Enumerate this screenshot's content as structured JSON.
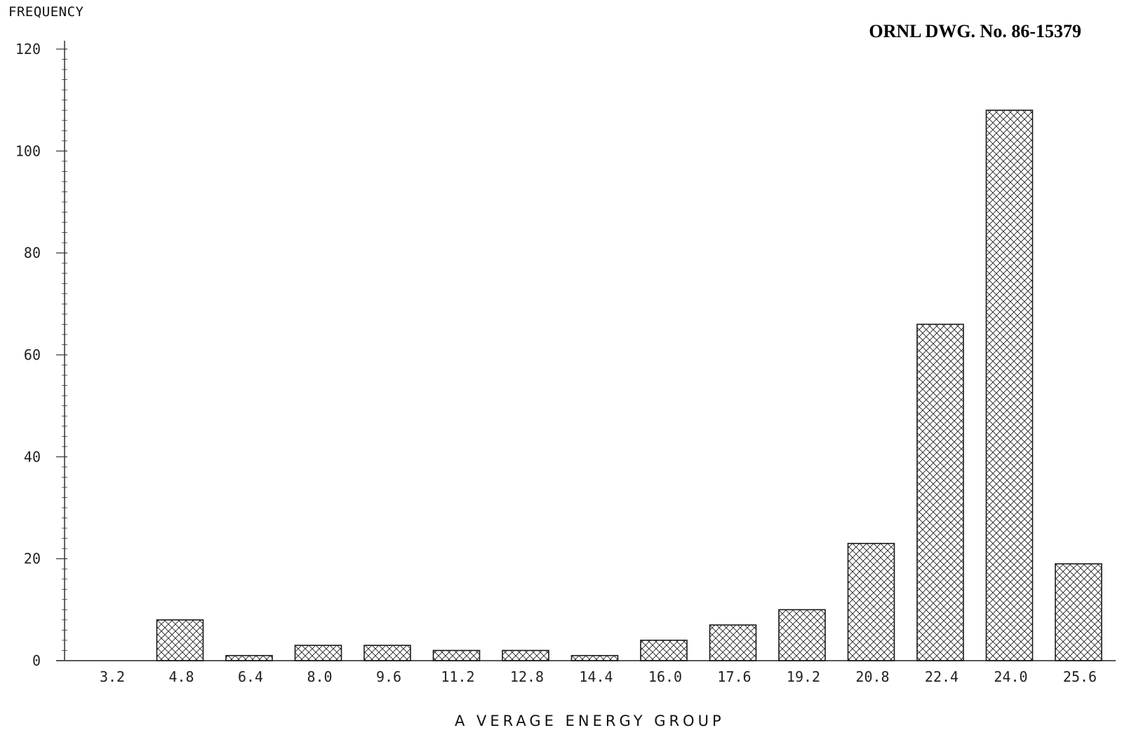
{
  "drawing_number": "ORNL DWG. No. 86-15379",
  "chart_data": {
    "type": "bar",
    "ylabel": "FREQUENCY",
    "xlabel": "A VERAGE ENERGY GROUP",
    "categories": [
      "3.2",
      "4.8",
      "6.4",
      "8.0",
      "9.6",
      "11.2",
      "12.8",
      "14.4",
      "16.0",
      "17.6",
      "19.2",
      "20.8",
      "22.4",
      "24.0",
      "25.6"
    ],
    "values": [
      0,
      8,
      1,
      3,
      3,
      2,
      2,
      1,
      4,
      7,
      10,
      23,
      66,
      108,
      19
    ],
    "ylim": [
      0,
      120
    ],
    "yticks": [
      0,
      20,
      40,
      60,
      80,
      100,
      120
    ],
    "grid": false,
    "bar_fill": "crosshatch",
    "colors": {
      "stroke": "#1a1a1a",
      "hatch": "#222222"
    }
  }
}
